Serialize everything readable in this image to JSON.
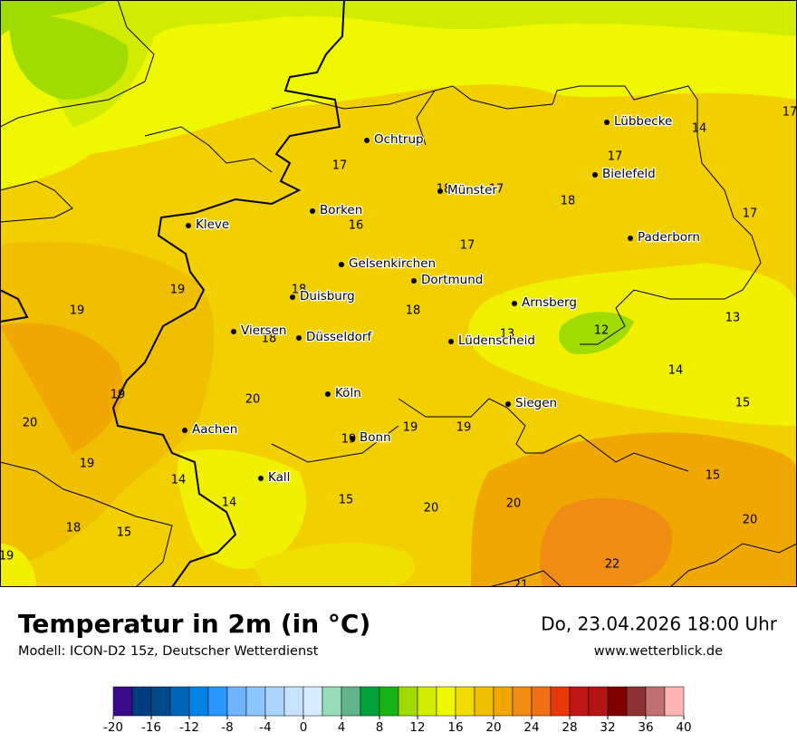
{
  "header": {
    "title": "Temperatur in 2m (in °C)",
    "subtitle": "Modell: ICON-D2 15z, Deutscher Wetterdienst",
    "datetime": "Do, 23.04.2026 18:00 Uhr",
    "website": "www.wetterblick.de"
  },
  "cities": [
    {
      "name": "Lübbecke"
    },
    {
      "name": "Ochtrup"
    },
    {
      "name": "Bielefeld"
    },
    {
      "name": "Münster"
    },
    {
      "name": "Borken"
    },
    {
      "name": "Kleve"
    },
    {
      "name": "Paderborn"
    },
    {
      "name": "Gelsenkirchen"
    },
    {
      "name": "Dortmund"
    },
    {
      "name": "Duisburg"
    },
    {
      "name": "Arnsberg"
    },
    {
      "name": "Viersen"
    },
    {
      "name": "Düsseldorf"
    },
    {
      "name": "Lüdenscheid"
    },
    {
      "name": "Köln"
    },
    {
      "name": "Siegen"
    },
    {
      "name": "Aachen"
    },
    {
      "name": "Bonn"
    },
    {
      "name": "Kall"
    }
  ],
  "temperatures": [
    17,
    16,
    18,
    17,
    17,
    18,
    17,
    14,
    17,
    17,
    19,
    19,
    18,
    18,
    18,
    13,
    12,
    13,
    14,
    19,
    20,
    20,
    15,
    19,
    19,
    19,
    19,
    14,
    15,
    14,
    15,
    20,
    20,
    18,
    15,
    20,
    19,
    22,
    21
  ],
  "colorbar": {
    "ticks": [
      -20,
      -16,
      -12,
      -8,
      -4,
      0,
      4,
      8,
      12,
      16,
      20,
      24,
      28,
      32,
      36,
      40
    ],
    "colors": [
      "#3a0a8a",
      "#003c80",
      "#004a8c",
      "#0064b8",
      "#0082e6",
      "#2896ff",
      "#6eb4ff",
      "#8cc6ff",
      "#a8d4ff",
      "#c6e2ff",
      "#d8ecff",
      "#96dcb8",
      "#62b48c",
      "#00a03c",
      "#18b414",
      "#a0dc00",
      "#d2ec00",
      "#f0f800",
      "#f0dc00",
      "#f0c000",
      "#f0a800",
      "#f08c14",
      "#f07014",
      "#e8380a",
      "#c01414",
      "#b41414",
      "#800000",
      "#8c3232",
      "#c07070",
      "#ffb4b4"
    ]
  }
}
